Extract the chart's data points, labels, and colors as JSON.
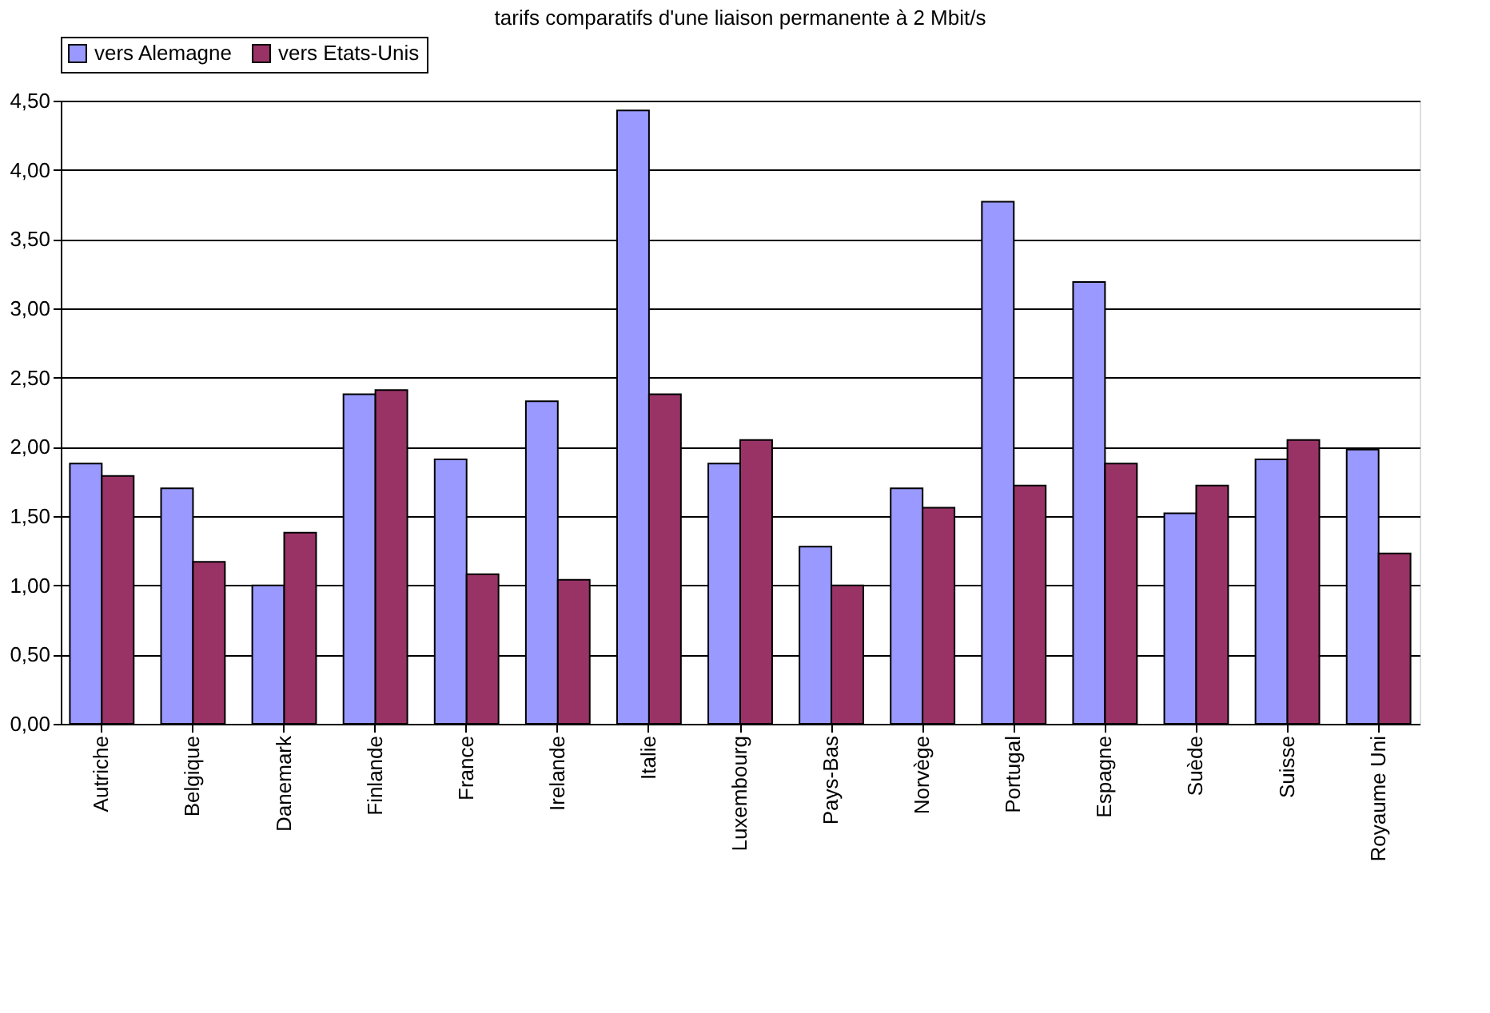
{
  "chart_data": {
    "type": "bar",
    "title": "tarifs comparatifs d'une liaison permanente à 2 Mbit/s",
    "categories": [
      "Autriche",
      "Belgique",
      "Danemark",
      "Finlande",
      "France",
      "Irelande",
      "Italie",
      "Luxembourg",
      "Pays-Bas",
      "Norvège",
      "Portugal",
      "Espagne",
      "Suède",
      "Suisse",
      "Royaume Uni"
    ],
    "series": [
      {
        "name": "vers Alemagne",
        "color": "#9999ff",
        "values": [
          1.88,
          1.7,
          1.0,
          2.38,
          1.91,
          2.33,
          4.43,
          1.88,
          1.28,
          1.7,
          3.77,
          3.19,
          1.52,
          1.91,
          1.98
        ]
      },
      {
        "name": "vers Etats-Unis",
        "color": "#993366",
        "values": [
          1.79,
          1.17,
          1.38,
          2.41,
          1.08,
          1.04,
          2.38,
          2.05,
          1.0,
          1.56,
          1.72,
          1.88,
          1.72,
          2.05,
          1.23
        ]
      }
    ],
    "ylim": [
      0,
      4.5
    ],
    "yticks": [
      {
        "value": 0,
        "label": "0,00"
      },
      {
        "value": 0.5,
        "label": "0,50"
      },
      {
        "value": 1,
        "label": "1,00"
      },
      {
        "value": 1.5,
        "label": "1,50"
      },
      {
        "value": 2,
        "label": "2,00"
      },
      {
        "value": 2.5,
        "label": "2,50"
      },
      {
        "value": 3,
        "label": "3,00"
      },
      {
        "value": 3.5,
        "label": "3,50"
      },
      {
        "value": 4,
        "label": "4,00"
      },
      {
        "value": 4.5,
        "label": "4,50"
      }
    ],
    "grid": "y",
    "legend": "top"
  }
}
